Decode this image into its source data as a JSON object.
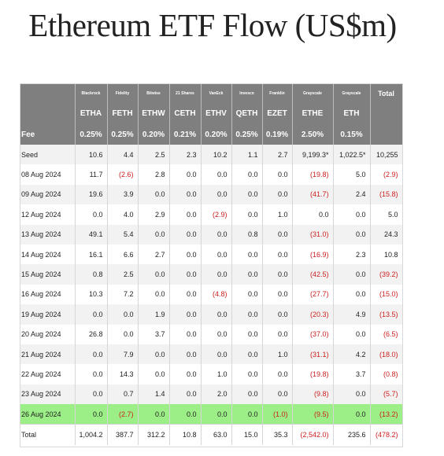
{
  "title": "Ethereum ETF Flow (US$m)",
  "issuers": [
    "",
    "Blackrock",
    "Fidelity",
    "Bitwise",
    "21 Shares",
    "VanEck",
    "Invesco",
    "Franklin",
    "Grayscale",
    "Grayscale",
    "Total"
  ],
  "tickers": [
    "",
    "ETHA",
    "FETH",
    "ETHW",
    "CETH",
    "ETHV",
    "QETH",
    "EZET",
    "ETHE",
    "ETH",
    ""
  ],
  "fees": [
    "Fee",
    "0.25%",
    "0.25%",
    "0.20%",
    "0.21%",
    "0.20%",
    "0.25%",
    "0.19%",
    "2.50%",
    "0.15%",
    ""
  ],
  "rows": [
    [
      "Seed",
      "10.6",
      "4.4",
      "2.5",
      "2.3",
      "10.2",
      "1.1",
      "2.7",
      "9,199.3*",
      "1,022.5*",
      "10,255"
    ],
    [
      "08 Aug 2024",
      "11.7",
      "(2.6)",
      "2.8",
      "0.0",
      "0.0",
      "0.0",
      "0.0",
      "(19.8)",
      "5.0",
      "(2.9)"
    ],
    [
      "09 Aug 2024",
      "19.6",
      "3.9",
      "0.0",
      "0.0",
      "0.0",
      "0.0",
      "0.0",
      "(41.7)",
      "2.4",
      "(15.8)"
    ],
    [
      "12 Aug 2024",
      "0.0",
      "4.0",
      "2.9",
      "0.0",
      "(2.9)",
      "0.0",
      "1.0",
      "0.0",
      "0.0",
      "5.0"
    ],
    [
      "13 Aug 2024",
      "49.1",
      "5.4",
      "0.0",
      "0.0",
      "0.0",
      "0.8",
      "0.0",
      "(31.0)",
      "0.0",
      "24.3"
    ],
    [
      "14 Aug 2024",
      "16.1",
      "6.6",
      "2.7",
      "0.0",
      "0.0",
      "0.0",
      "0.0",
      "(16.9)",
      "2.3",
      "10.8"
    ],
    [
      "15 Aug 2024",
      "0.8",
      "2.5",
      "0.0",
      "0.0",
      "0.0",
      "0.0",
      "0.0",
      "(42.5)",
      "0.0",
      "(39.2)"
    ],
    [
      "16 Aug 2024",
      "10.3",
      "7.2",
      "0.0",
      "0.0",
      "(4.8)",
      "0.0",
      "0.0",
      "(27.7)",
      "0.0",
      "(15.0)"
    ],
    [
      "19 Aug 2024",
      "0.0",
      "0.0",
      "1.9",
      "0.0",
      "0.0",
      "0.0",
      "0.0",
      "(20.3)",
      "4.9",
      "(13.5)"
    ],
    [
      "20 Aug 2024",
      "26.8",
      "0.0",
      "3.7",
      "0.0",
      "0.0",
      "0.0",
      "0.0",
      "(37.0)",
      "0.0",
      "(6.5)"
    ],
    [
      "21 Aug 2024",
      "0.0",
      "7.9",
      "0.0",
      "0.0",
      "0.0",
      "0.0",
      "1.0",
      "(31.1)",
      "4.2",
      "(18.0)"
    ],
    [
      "22 Aug 2024",
      "0.0",
      "14.3",
      "0.0",
      "0.0",
      "1.0",
      "0.0",
      "0.0",
      "(19.8)",
      "3.7",
      "(0.8)"
    ],
    [
      "23 Aug 2024",
      "0.0",
      "0.7",
      "1.4",
      "0.0",
      "2.0",
      "0.0",
      "0.0",
      "(9.8)",
      "0.0",
      "(5.7)"
    ],
    [
      "26 Aug 2024",
      "0.0",
      "(2.7)",
      "0.0",
      "0.0",
      "0.0",
      "0.0",
      "(1.0)",
      "(9.5)",
      "0.0",
      "(13.2)"
    ],
    [
      "Total",
      "1,004.2",
      "387.7",
      "312.2",
      "10.8",
      "63.0",
      "15.0",
      "35.3",
      "(2,542.0)",
      "235.6",
      "(478.2)"
    ]
  ],
  "colors": {
    "header_bg": "#7f7f7f",
    "negative": "#cc2020",
    "highlight_row": "#9bef86",
    "seed_row": "#e6ebf5"
  }
}
